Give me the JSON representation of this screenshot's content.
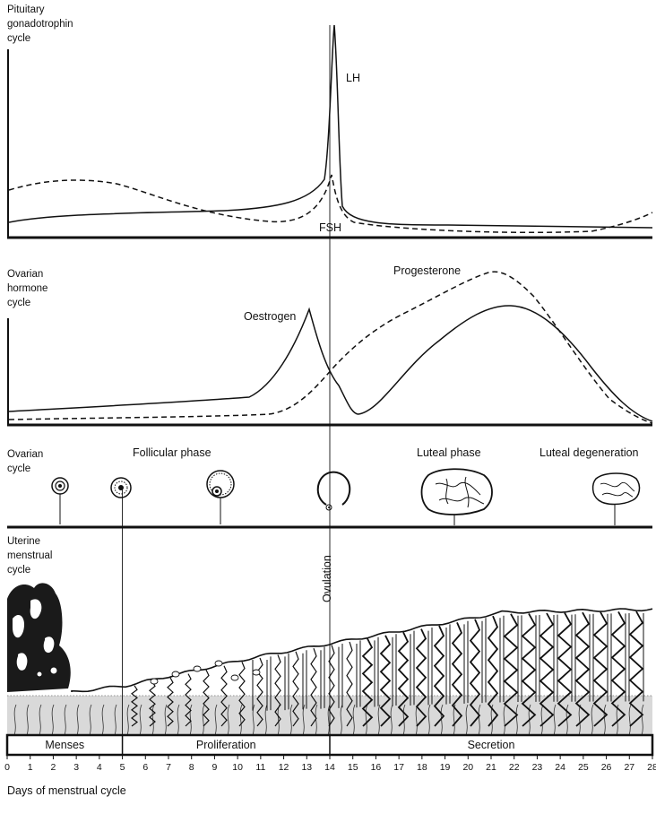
{
  "panels": {
    "pituitary": {
      "label_lines": [
        "Pituitary",
        "gonadotrophin",
        "cycle"
      ],
      "lh_label": "LH",
      "fsh_label": "FSH"
    },
    "ovarian_hormone": {
      "label_lines": [
        "Ovarian",
        "hormone",
        "cycle"
      ],
      "oestrogen_label": "Oestrogen",
      "progesterone_label": "Progesterone"
    },
    "ovarian_cycle": {
      "label_lines": [
        "Ovarian",
        "cycle"
      ],
      "follicular_label": "Follicular phase",
      "luteal_label": "Luteal phase",
      "degeneration_label": "Luteal degeneration"
    },
    "uterine": {
      "label_lines": [
        "Uterine",
        "menstrual",
        "cycle"
      ],
      "ovulation_label": "Ovulation"
    }
  },
  "phases": [
    {
      "name": "Menses",
      "start_day": 0,
      "end_day": 5
    },
    {
      "name": "Proliferation",
      "start_day": 5,
      "end_day": 14
    },
    {
      "name": "Secretion",
      "start_day": 14,
      "end_day": 28
    }
  ],
  "axis": {
    "ticks": [
      "0",
      "1",
      "2",
      "3",
      "4",
      "5",
      "6",
      "7",
      "8",
      "9",
      "10",
      "11",
      "12",
      "13",
      "14",
      "15",
      "16",
      "17",
      "18",
      "19",
      "20",
      "21",
      "22",
      "23",
      "24",
      "25",
      "26",
      "27",
      "28"
    ],
    "xlabel": "Days of menstrual cycle"
  },
  "ovulation_day": 14,
  "colors": {
    "ink": "#111111",
    "stroma": "#d9d9d9"
  }
}
